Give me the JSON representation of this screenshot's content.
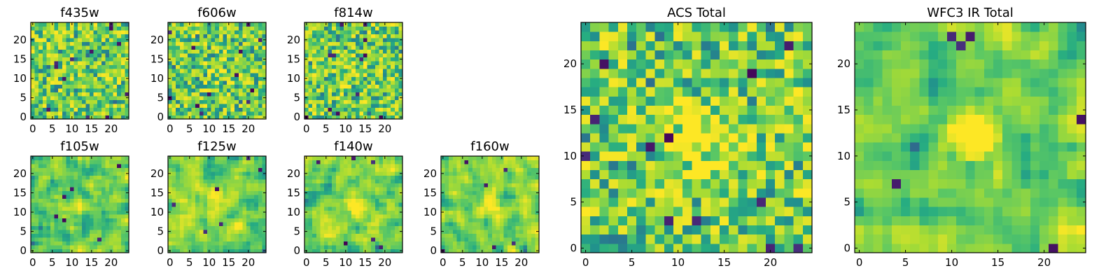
{
  "figure": {
    "colormap": "viridis"
  },
  "chart_data": [
    {
      "id": "f435w",
      "type": "heatmap",
      "title": "f435w",
      "grid_size": 25,
      "xlim": [
        0,
        24
      ],
      "ylim": [
        0,
        24
      ],
      "xticks": [
        0,
        5,
        10,
        15,
        20
      ],
      "yticks": [
        0,
        5,
        10,
        15,
        20
      ],
      "grid": false,
      "smoothness": 0,
      "noise_seed": 11,
      "bright_center": 0
    },
    {
      "id": "f606w",
      "type": "heatmap",
      "title": "f606w",
      "grid_size": 25,
      "xlim": [
        0,
        24
      ],
      "ylim": [
        0,
        24
      ],
      "xticks": [
        0,
        5,
        10,
        15,
        20
      ],
      "yticks": [
        0,
        5,
        10,
        15,
        20
      ],
      "grid": false,
      "smoothness": 0,
      "noise_seed": 23,
      "bright_center": 0.3
    },
    {
      "id": "f814w",
      "type": "heatmap",
      "title": "f814w",
      "grid_size": 25,
      "xlim": [
        0,
        24
      ],
      "ylim": [
        0,
        24
      ],
      "xticks": [
        0,
        5,
        10,
        15,
        20
      ],
      "yticks": [
        0,
        5,
        10,
        15,
        20
      ],
      "grid": false,
      "smoothness": 0,
      "noise_seed": 37,
      "bright_center": 0.3
    },
    {
      "id": "f105w",
      "type": "heatmap",
      "title": "f105w",
      "grid_size": 25,
      "xlim": [
        0,
        24
      ],
      "ylim": [
        0,
        24
      ],
      "xticks": [
        0,
        5,
        10,
        15,
        20
      ],
      "yticks": [
        0,
        5,
        10,
        15,
        20
      ],
      "grid": false,
      "smoothness": 1,
      "noise_seed": 41,
      "bright_center": 0.4
    },
    {
      "id": "f125w",
      "type": "heatmap",
      "title": "f125w",
      "grid_size": 25,
      "xlim": [
        0,
        24
      ],
      "ylim": [
        0,
        24
      ],
      "xticks": [
        0,
        5,
        10,
        15,
        20
      ],
      "yticks": [
        0,
        5,
        10,
        15,
        20
      ],
      "grid": false,
      "smoothness": 1,
      "noise_seed": 53,
      "bright_center": 0.4
    },
    {
      "id": "f140w",
      "type": "heatmap",
      "title": "f140w",
      "grid_size": 25,
      "xlim": [
        0,
        24
      ],
      "ylim": [
        0,
        24
      ],
      "xticks": [
        0,
        5,
        10,
        15,
        20
      ],
      "yticks": [
        0,
        5,
        10,
        15,
        20
      ],
      "grid": false,
      "smoothness": 1,
      "noise_seed": 67,
      "bright_center": 0.5
    },
    {
      "id": "f160w",
      "type": "heatmap",
      "title": "f160w",
      "grid_size": 25,
      "xlim": [
        0,
        24
      ],
      "ylim": [
        0,
        24
      ],
      "xticks": [
        0,
        5,
        10,
        15,
        20
      ],
      "yticks": [
        0,
        5,
        10,
        15,
        20
      ],
      "grid": false,
      "smoothness": 1,
      "noise_seed": 79,
      "bright_center": 0.6
    },
    {
      "id": "acs-total",
      "type": "heatmap",
      "title": "ACS Total",
      "grid_size": 25,
      "xlim": [
        0,
        24
      ],
      "ylim": [
        0,
        24
      ],
      "xticks": [
        0,
        5,
        10,
        15,
        20
      ],
      "yticks": [
        0,
        5,
        10,
        15,
        20
      ],
      "grid": false,
      "smoothness": 0,
      "noise_seed": 97,
      "bright_center": 0.9
    },
    {
      "id": "wfc3-ir-total",
      "type": "heatmap",
      "title": "WFC3 IR Total",
      "grid_size": 25,
      "xlim": [
        0,
        24
      ],
      "ylim": [
        0,
        24
      ],
      "xticks": [
        0,
        5,
        10,
        15,
        20
      ],
      "yticks": [
        0,
        5,
        10,
        15,
        20
      ],
      "grid": false,
      "smoothness": 1,
      "noise_seed": 103,
      "bright_center": 1.0
    }
  ]
}
